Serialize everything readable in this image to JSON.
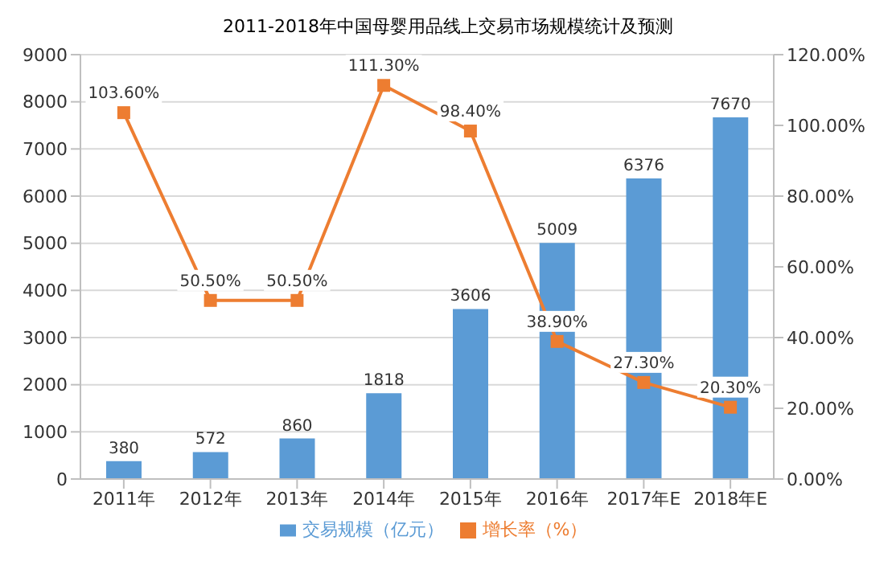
{
  "chart_data": {
    "type": "bar",
    "title": "2011-2018年中国母婴用品线上交易市场规模统计及预测",
    "categories": [
      "2011年",
      "2012年",
      "2013年",
      "2014年",
      "2015年",
      "2016年",
      "2017年E",
      "2018年E"
    ],
    "series": [
      {
        "name": "交易规模（亿元）",
        "color": "#5b9bd5",
        "values": [
          380,
          572,
          860,
          1818,
          3606,
          5009,
          6376,
          7670
        ],
        "value_labels": [
          "380",
          "572",
          "860",
          "1818",
          "3606",
          "5009",
          "6376",
          "7670"
        ]
      },
      {
        "name": "增长率（%）",
        "type": "line",
        "axis": "y2",
        "color": "#ed7d31",
        "marker": "square",
        "values": [
          103.6,
          50.5,
          50.5,
          111.3,
          98.4,
          38.9,
          27.3,
          20.3
        ],
        "value_labels": [
          "103.60%",
          "50.50%",
          "50.50%",
          "111.30%",
          "98.40%",
          "38.90%",
          "27.30%",
          "20.30%"
        ]
      }
    ],
    "ylim": [
      0,
      9000
    ],
    "yticks": [
      0,
      1000,
      2000,
      3000,
      4000,
      5000,
      6000,
      7000,
      8000,
      9000
    ],
    "y2lim": [
      0,
      120
    ],
    "y2ticks": [
      {
        "value": 0,
        "label": "0.00%"
      },
      {
        "value": 20,
        "label": "20.00%"
      },
      {
        "value": 40,
        "label": "40.00%"
      },
      {
        "value": 60,
        "label": "60.00%"
      },
      {
        "value": 80,
        "label": "80.00%"
      },
      {
        "value": 100,
        "label": "100.00%"
      },
      {
        "value": 120,
        "label": "120.00%"
      }
    ],
    "grid": "y",
    "legend": "bottom"
  }
}
